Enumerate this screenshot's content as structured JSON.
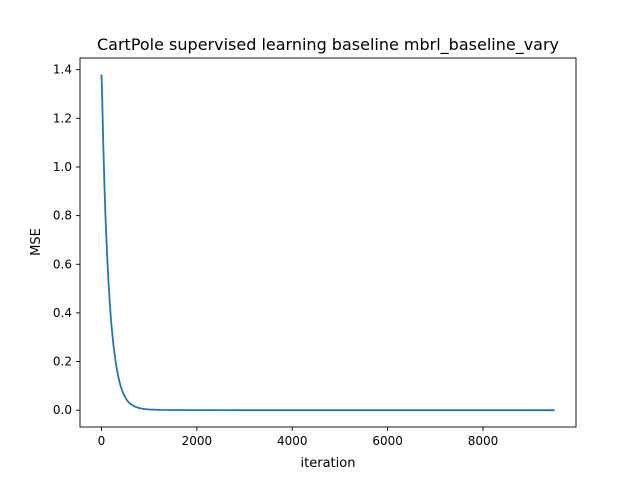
{
  "chart_data": {
    "type": "line",
    "title": "CartPole supervised learning baseline mbrl_baseline_vary",
    "xlabel": "iteration",
    "ylabel": "MSE",
    "xlim": [
      -450,
      9950
    ],
    "ylim": [
      -0.069,
      1.448
    ],
    "xticks": [
      0,
      2000,
      4000,
      6000,
      8000
    ],
    "xtick_labels": [
      "0",
      "2000",
      "4000",
      "6000",
      "8000"
    ],
    "yticks": [
      0.0,
      0.2,
      0.4,
      0.6,
      0.8,
      1.0,
      1.2,
      1.4
    ],
    "ytick_labels": [
      "0.0",
      "0.2",
      "0.4",
      "0.6",
      "0.8",
      "1.0",
      "1.2",
      "1.4"
    ],
    "grid": false,
    "series": [
      {
        "color": "#1f77b4",
        "x": [
          0,
          5,
          10,
          20,
          30,
          40,
          50,
          60,
          70,
          80,
          90,
          100,
          125,
          150,
          175,
          200,
          250,
          300,
          350,
          400,
          450,
          500,
          550,
          600,
          700,
          800,
          900,
          1000,
          1200,
          1500,
          2000,
          3000,
          4000,
          5000,
          6000,
          7000,
          8000,
          9000,
          9500
        ],
        "y": [
          1.38,
          1.36,
          1.32,
          1.24,
          1.16,
          1.08,
          1.01,
          0.94,
          0.88,
          0.82,
          0.77,
          0.72,
          0.61,
          0.52,
          0.44,
          0.37,
          0.27,
          0.195,
          0.14,
          0.1,
          0.072,
          0.052,
          0.037,
          0.027,
          0.015,
          0.008,
          0.005,
          0.003,
          0.0015,
          0.0008,
          0.0004,
          0.0002,
          0.0001,
          0.0001,
          0.0001,
          0.0001,
          0.0001,
          0.0001,
          0.0001
        ]
      }
    ]
  }
}
